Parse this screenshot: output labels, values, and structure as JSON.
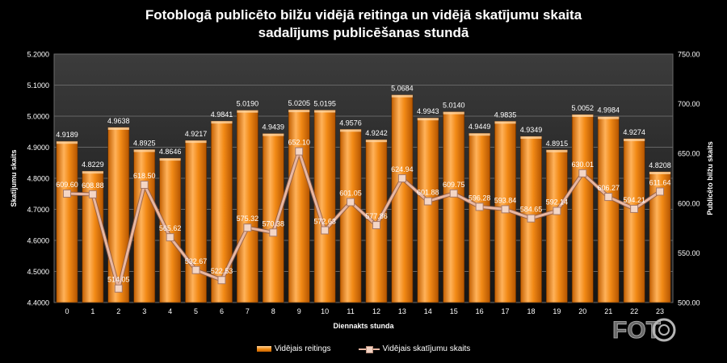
{
  "title": {
    "line1": "Fotoblogā publicēto bilžu vidējā reitinga un vidējā skatījumu skaita",
    "line2": "sadalījums publicēšanas stundā"
  },
  "logo": {
    "text": "FOTO"
  },
  "chart_data": {
    "type": "bar",
    "xlabel": "Diennakts stunda",
    "ylabel_left": "Skatījumu skaits",
    "ylabel_right": "Publicēto bilžu skaits",
    "categories": [
      "0",
      "1",
      "2",
      "3",
      "4",
      "5",
      "6",
      "7",
      "8",
      "9",
      "10",
      "11",
      "12",
      "13",
      "14",
      "15",
      "16",
      "17",
      "18",
      "19",
      "20",
      "21",
      "22",
      "23"
    ],
    "y_left": {
      "min": 4.4,
      "max": 5.2,
      "ticks": [
        "4.4000",
        "4.5000",
        "4.6000",
        "4.7000",
        "4.8000",
        "4.9000",
        "5.0000",
        "5.1000",
        "5.2000"
      ]
    },
    "y_right": {
      "min": 500,
      "max": 750,
      "ticks": [
        "500.00",
        "550.00",
        "600.00",
        "650.00",
        "700.00",
        "750.00"
      ]
    },
    "grid": true,
    "legend_position": "bottom",
    "series": [
      {
        "name": "Vidējais reitings",
        "type": "bar",
        "axis": "left",
        "color": "#f08a12",
        "values": [
          4.9189,
          4.8229,
          4.9638,
          4.8925,
          4.8646,
          4.9217,
          4.9841,
          5.019,
          4.9439,
          5.0205,
          5.0195,
          4.9576,
          4.9242,
          5.0684,
          4.9943,
          5.014,
          4.9449,
          4.9835,
          4.9349,
          4.8915,
          5.0052,
          4.9984,
          4.9274,
          4.8208
        ],
        "labels": [
          "4.9189",
          "4.8229",
          "4.9638",
          "4.8925",
          "4.8646",
          "4.9217",
          "4.9841",
          "5.0190",
          "4.9439",
          "5.0205",
          "5.0195",
          "4.9576",
          "4.9242",
          "5.0684",
          "4.9943",
          "5.0140",
          "4.9449",
          "4.9835",
          "4.9349",
          "4.8915",
          "5.0052",
          "4.9984",
          "4.9274",
          "4.8208"
        ]
      },
      {
        "name": "Vidējais skatījumu skaits",
        "type": "line",
        "axis": "right",
        "color": "#e8b7a2",
        "values": [
          609.6,
          608.88,
          514.05,
          618.5,
          565.62,
          532.67,
          522.53,
          575.32,
          570.38,
          652.1,
          572.63,
          601.05,
          577.86,
          624.94,
          601.88,
          609.75,
          596.28,
          593.84,
          584.65,
          592.14,
          630.01,
          606.27,
          594.21,
          611.64
        ],
        "labels": [
          "609.60",
          "608.88",
          "514.05",
          "618.50",
          "565.62",
          "532.67",
          "522.53",
          "575.32",
          "570.38",
          "652.10",
          "572.63",
          "601.05",
          "577.86",
          "624.94",
          "601.88",
          "609.75",
          "596.28",
          "593.84",
          "584.65",
          "592.14",
          "630.01",
          "606.27",
          "594.21",
          "611.64"
        ]
      }
    ]
  }
}
